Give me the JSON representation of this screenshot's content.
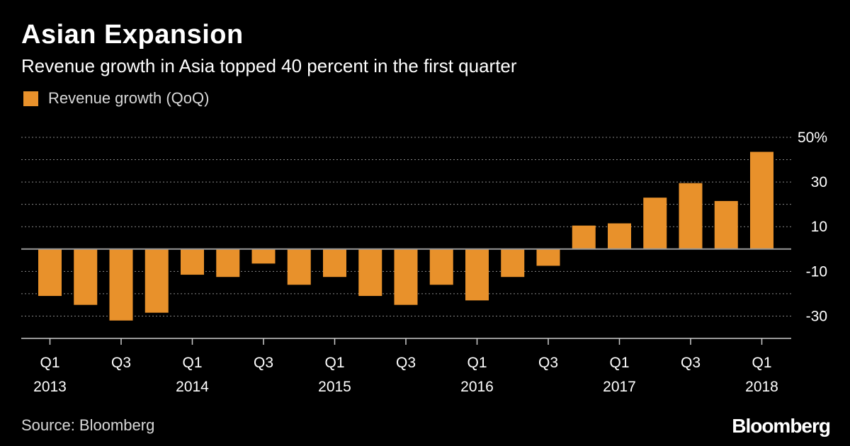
{
  "header": {
    "title": "Asian Expansion",
    "subtitle": "Revenue growth in Asia topped 40 percent in the first quarter"
  },
  "footer": {
    "source": "Source: Bloomberg",
    "brand": "Bloomberg"
  },
  "colors": {
    "bar": "#e8912b",
    "background": "#000000",
    "grid": "#888888",
    "zero_line": "#999999"
  },
  "chart_data": {
    "type": "bar",
    "legend": {
      "label": "Revenue growth (QoQ)",
      "position": "top-left"
    },
    "categories": [
      "Q1 2013",
      "Q2 2013",
      "Q3 2013",
      "Q4 2013",
      "Q1 2014",
      "Q2 2014",
      "Q3 2014",
      "Q4 2014",
      "Q1 2015",
      "Q2 2015",
      "Q3 2015",
      "Q4 2015",
      "Q1 2016",
      "Q2 2016",
      "Q3 2016",
      "Q4 2016",
      "Q1 2017",
      "Q2 2017",
      "Q3 2017",
      "Q4 2017",
      "Q1 2018"
    ],
    "values": [
      -21,
      -25,
      -32,
      -28.5,
      -11.5,
      -12.5,
      -6.5,
      -16,
      -12.5,
      -21,
      -25,
      -16,
      -23,
      -12.5,
      -7.5,
      10.5,
      11.5,
      23,
      29.5,
      21.5,
      43.5
    ],
    "ylim": [
      -40,
      50
    ],
    "grid": true,
    "y_ticks": [
      {
        "value": 50,
        "label": "50%"
      },
      {
        "value": 30,
        "label": "30"
      },
      {
        "value": 10,
        "label": "10"
      },
      {
        "value": -10,
        "label": "-10"
      },
      {
        "value": -30,
        "label": "-30"
      }
    ],
    "x_ticks": [
      {
        "index": 0,
        "quarter": "Q1",
        "year": "2013"
      },
      {
        "index": 2,
        "quarter": "Q3",
        "year": ""
      },
      {
        "index": 4,
        "quarter": "Q1",
        "year": "2014"
      },
      {
        "index": 6,
        "quarter": "Q3",
        "year": ""
      },
      {
        "index": 8,
        "quarter": "Q1",
        "year": "2015"
      },
      {
        "index": 10,
        "quarter": "Q3",
        "year": ""
      },
      {
        "index": 12,
        "quarter": "Q1",
        "year": "2016"
      },
      {
        "index": 14,
        "quarter": "Q3",
        "year": ""
      },
      {
        "index": 16,
        "quarter": "Q1",
        "year": "2017"
      },
      {
        "index": 18,
        "quarter": "Q3",
        "year": ""
      },
      {
        "index": 20,
        "quarter": "Q1",
        "year": "2018"
      }
    ]
  }
}
